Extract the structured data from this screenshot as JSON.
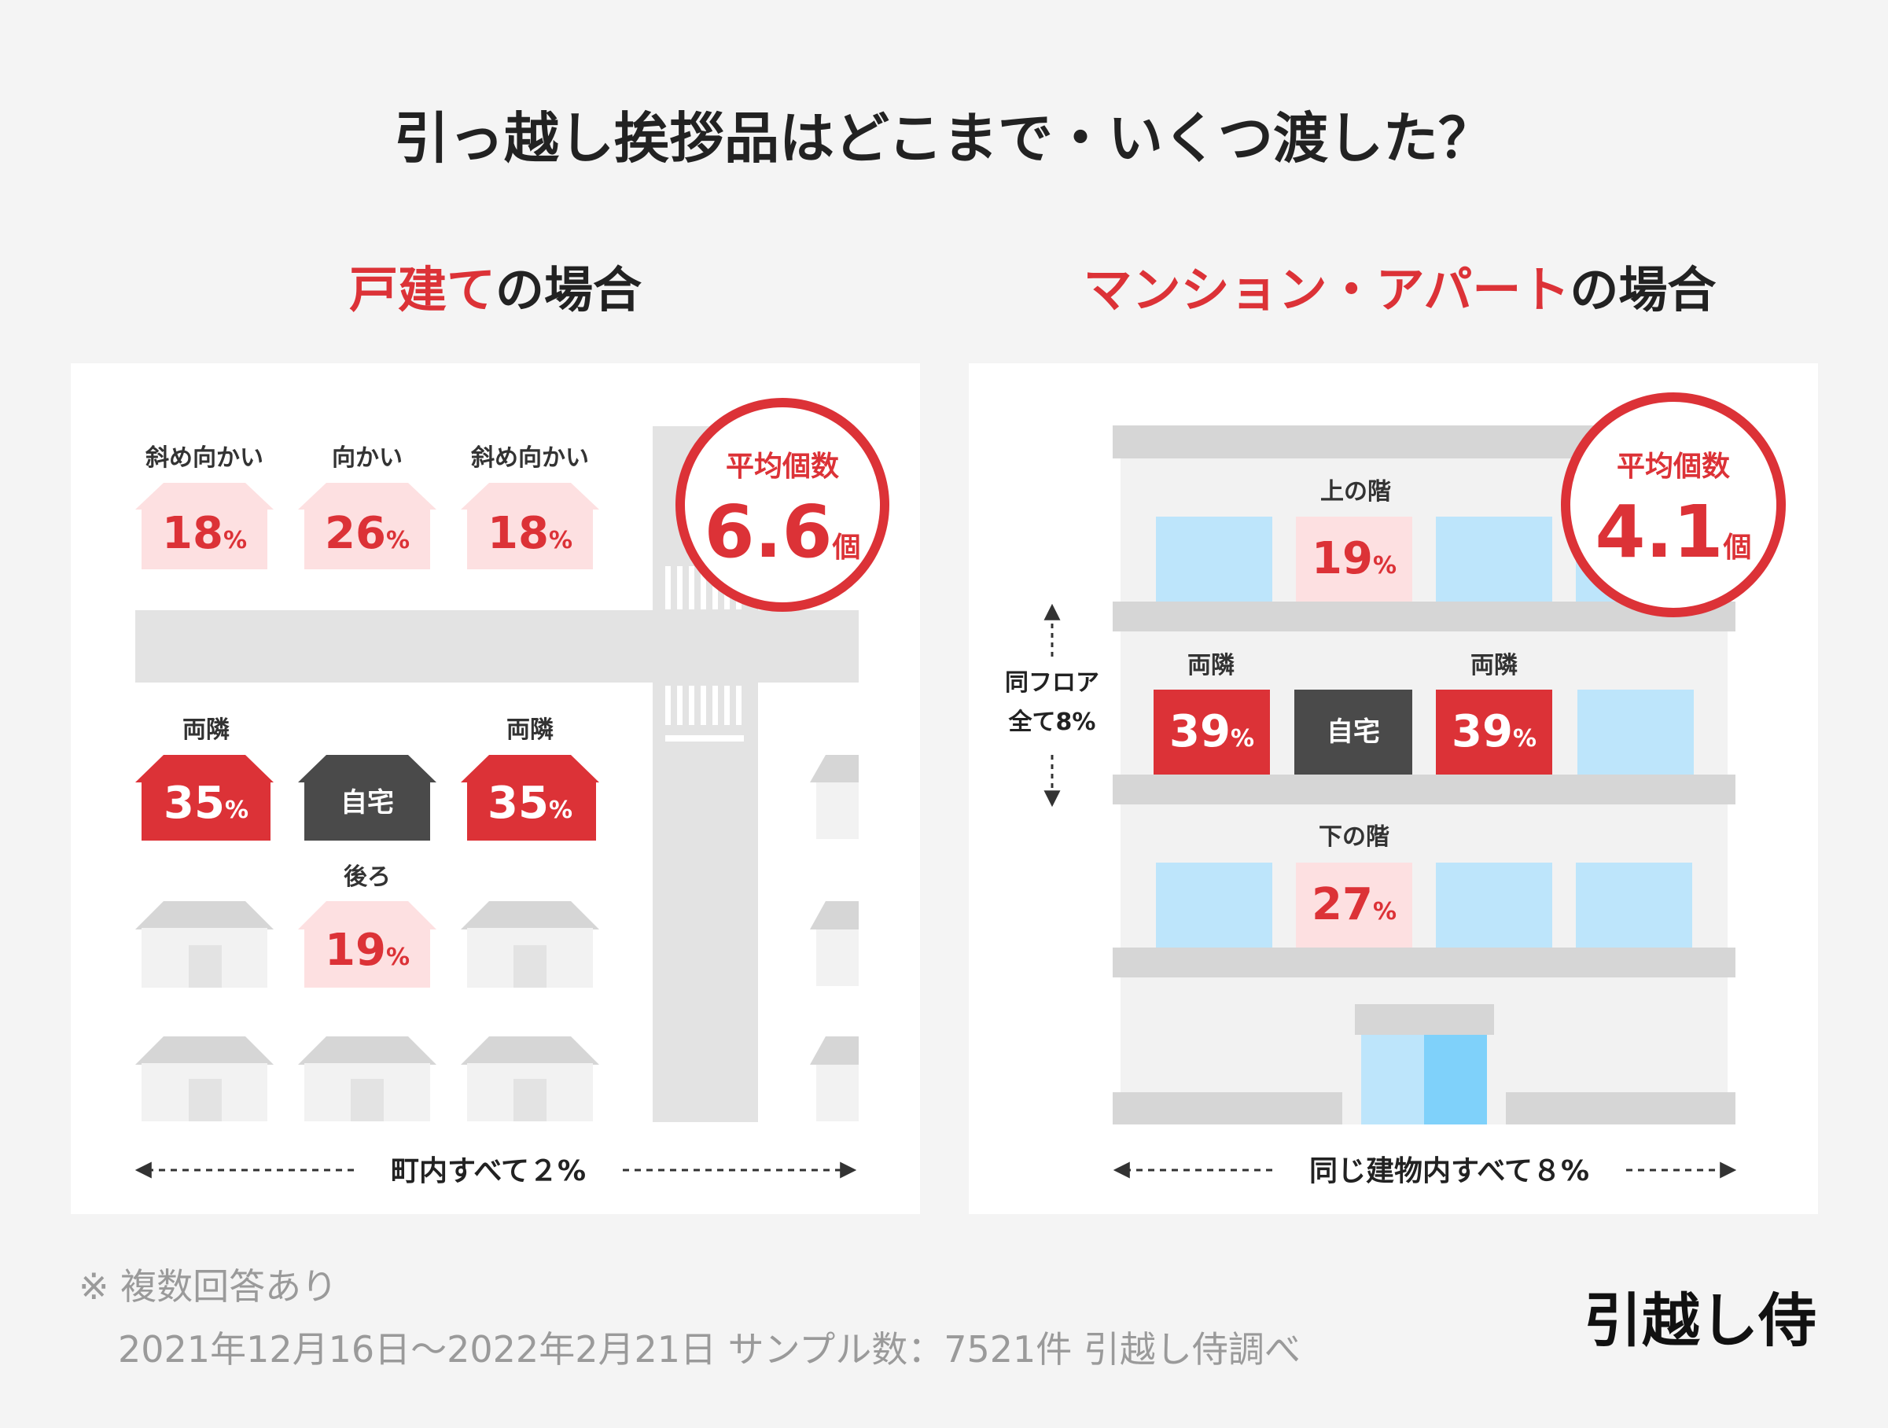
{
  "title": "引っ越し挨拶品はどこまで・いくつ渡した？",
  "house": {
    "heading_accent": "戸建て",
    "heading_rest": "の場合",
    "badge": {
      "label": "平均個数",
      "value": "6.6",
      "unit": "個"
    },
    "cells": {
      "front_left": {
        "label": "斜め向かい",
        "value": "18",
        "pct": "%"
      },
      "front": {
        "label": "向かい",
        "value": "26",
        "pct": "%"
      },
      "front_right": {
        "label": "斜め向かい",
        "value": "18",
        "pct": "%"
      },
      "side_left": {
        "label": "両隣",
        "value": "35",
        "pct": "%"
      },
      "home": {
        "label": "自宅"
      },
      "side_right": {
        "label": "両隣",
        "value": "35",
        "pct": "%"
      },
      "back": {
        "label": "後ろ",
        "value": "19",
        "pct": "%"
      }
    },
    "town_label": "町内すべて２%"
  },
  "apartment": {
    "heading_accent": "マンション・アパート",
    "heading_rest": "の場合",
    "badge": {
      "label": "平均個数",
      "value": "4.1",
      "unit": "個"
    },
    "cells": {
      "upper": {
        "label": "上の階",
        "value": "19",
        "pct": "%"
      },
      "side_left": {
        "label": "両隣",
        "value": "39",
        "pct": "%"
      },
      "home": {
        "label": "自宅"
      },
      "side_right": {
        "label": "両隣",
        "value": "39",
        "pct": "%"
      },
      "lower": {
        "label": "下の階",
        "value": "27",
        "pct": "%"
      }
    },
    "floor_label_line1": "同フロア",
    "floor_label_line2": "全て8%",
    "building_label": "同じ建物内すべて８%"
  },
  "footer": {
    "note": "※ 複数回答あり",
    "source": "2021年12月16日～2022年2月21日  サンプル数：7521件  引越し侍調べ",
    "brand": "引越し侍"
  },
  "colors": {
    "accent": "#dc3237",
    "pink": "#fde0e1",
    "dark": "#4a4a4a",
    "gray": "#d6d6d6",
    "window": "#bde5fb",
    "door": "#7fd1fa"
  }
}
